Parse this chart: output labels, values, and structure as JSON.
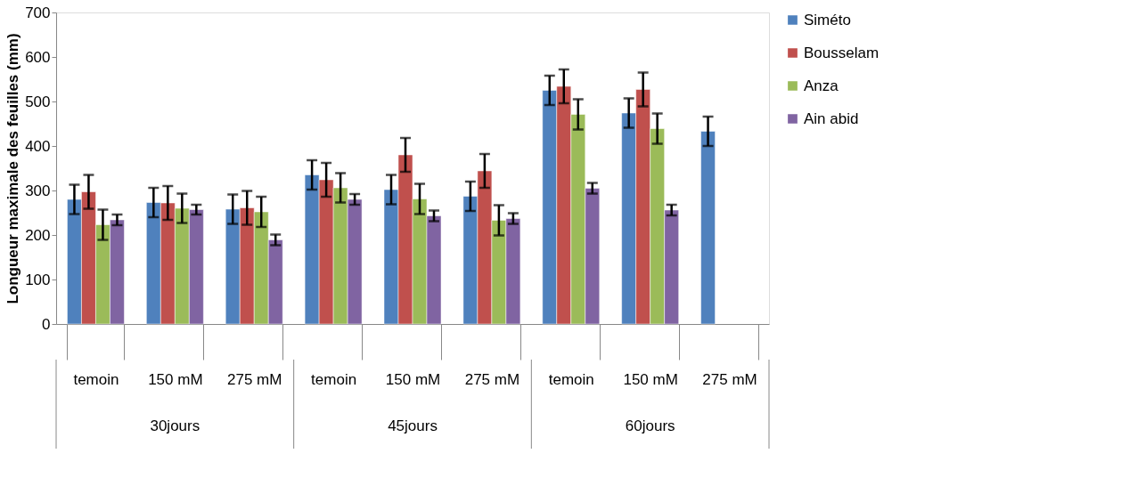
{
  "chart_data": {
    "type": "bar",
    "ylabel": "Longueur maximale des feuilles (mm)",
    "categories": [
      "temoin",
      "150 mM",
      "275 mM",
      "temoin",
      "150 mM",
      "275 mM",
      "temoin",
      "150 mM",
      "275 mM"
    ],
    "annotations": [
      "30jours",
      "45jours",
      "60jours"
    ],
    "series": [
      {
        "name": "Siméto",
        "color": "#4f81bd",
        "values": [
          280,
          273,
          258,
          335,
          302,
          287,
          525,
          474,
          433
        ],
        "errors": [
          33,
          33,
          33,
          33,
          33,
          33,
          33,
          33,
          33
        ]
      },
      {
        "name": "Bousselam",
        "color": "#c0504d",
        "values": [
          297,
          272,
          261,
          324,
          380,
          344,
          534,
          527,
          null
        ],
        "errors": [
          38,
          38,
          38,
          38,
          38,
          38,
          38,
          38,
          null
        ]
      },
      {
        "name": "Anza",
        "color": "#9bbb59",
        "values": [
          223,
          260,
          252,
          306,
          281,
          233,
          471,
          439,
          null
        ],
        "errors": [
          34,
          33,
          34,
          33,
          34,
          34,
          34,
          34,
          null
        ]
      },
      {
        "name": "Ain abid",
        "color": "#8064a2",
        "values": [
          234,
          257,
          189,
          280,
          243,
          237,
          305,
          256,
          null
        ],
        "errors": [
          12,
          11,
          12,
          12,
          12,
          12,
          12,
          12,
          null
        ]
      }
    ],
    "ylim": [
      0,
      700
    ],
    "yticks": [
      0,
      100,
      200,
      300,
      400,
      500,
      600,
      700
    ],
    "grid": false,
    "legend": "right"
  }
}
